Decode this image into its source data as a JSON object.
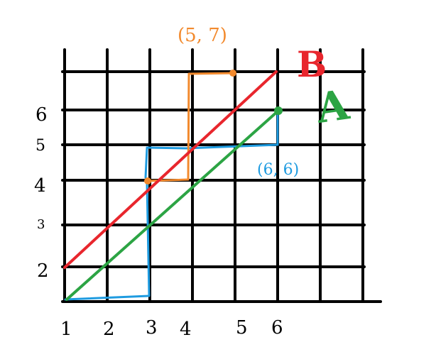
{
  "x_tick_labels": [
    "1",
    "2",
    "3",
    "4",
    "5",
    "6"
  ],
  "y_tick_labels": [
    "2",
    "3",
    "4",
    "5",
    "6"
  ],
  "line_labels": {
    "red": "B",
    "green": "A"
  },
  "point_labels": {
    "orange": "(5, 7)",
    "blue": "(6, 6)"
  },
  "colors": {
    "grid": "#000000",
    "red_line": "#e8262d",
    "green_line": "#2ca444",
    "orange_annotation": "#f28a2e",
    "blue_annotation": "#1e9be0"
  }
}
